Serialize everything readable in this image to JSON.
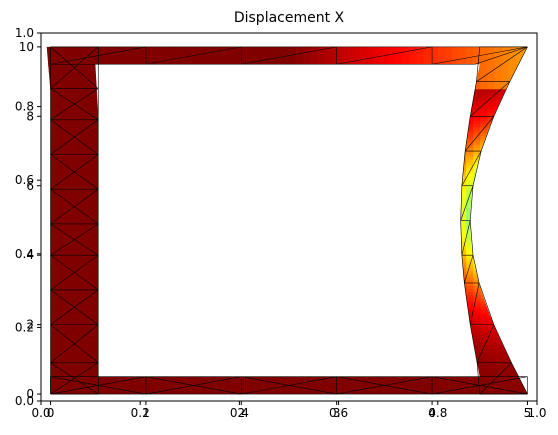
{
  "chart_data": {
    "type": "heatmap",
    "title": "Displacement X",
    "colormap": "jet",
    "axes_overlay": {
      "outer_xlim": [
        0.0,
        1.0
      ],
      "outer_ylim": [
        0.0,
        1.0
      ],
      "outer_xticks": [
        "0.0",
        "0.2",
        "0.4",
        "0.6",
        "0.8",
        "1.0"
      ],
      "outer_yticks": [
        "0.0",
        "0.2",
        "0.4",
        "0.6",
        "0.8",
        "1.0"
      ],
      "inner_xlim": [
        -0.1,
        5.1
      ],
      "inner_ylim": [
        -0.2,
        10.4
      ],
      "inner_xticks": [
        "0",
        "1",
        "2",
        "3",
        "4",
        "5"
      ],
      "inner_yticks": [
        "0",
        "2",
        "4",
        "6",
        "8",
        "10"
      ]
    },
    "mesh": {
      "frame_outer": {
        "x": [
          0,
          5
        ],
        "y": [
          0,
          10
        ]
      },
      "frame_inner": {
        "x": [
          0.5,
          4.5
        ],
        "y": [
          0.5,
          9.5
        ]
      },
      "right_edge_bulge": 0.6,
      "right_inner_bulge": 0.2,
      "color_scale": "high at left/bottom edges (dark red), lowest at mid-height of right edge (dark blue)"
    }
  },
  "figure": {
    "colors": {
      "background": "#ffffff",
      "axis": "#000000",
      "mesh_line": "#000000"
    }
  }
}
